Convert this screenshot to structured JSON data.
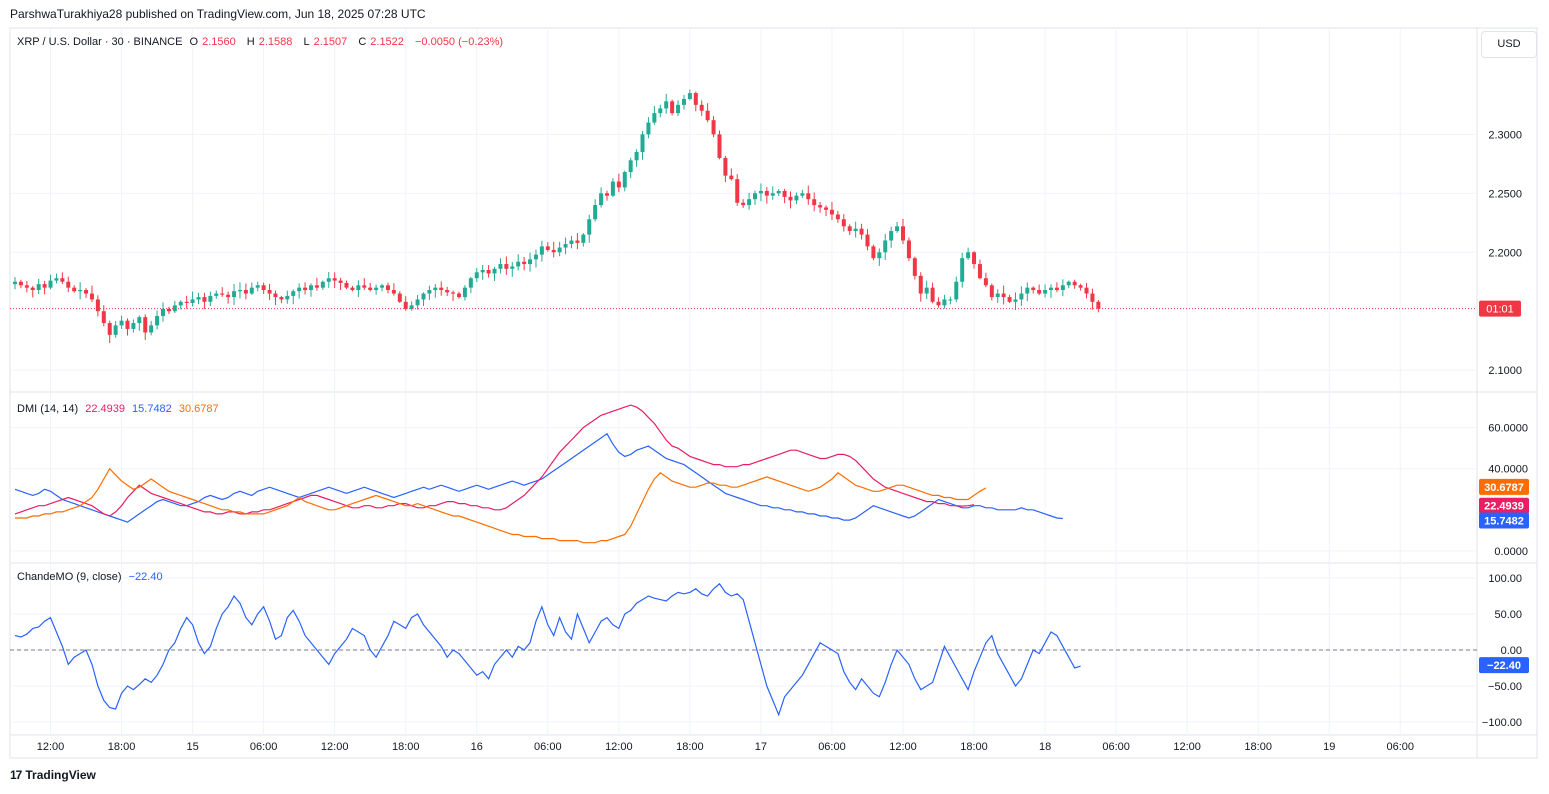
{
  "header": {
    "text": "ParshwaTurakhiya28 published on TradingView.com, Jun 18, 2025 07:28 UTC"
  },
  "footer": {
    "brand": "TradingView",
    "logo_glyph": "17"
  },
  "currency_button": "USD",
  "colors": {
    "up": "#22ab94",
    "down": "#f23645",
    "dmi_plus": "#2962ff",
    "dmi_minus": "#f7525f",
    "adx": "#ff6d00",
    "dmi_pink": "#e91e63",
    "cmo": "#2962ff",
    "text": "#131722",
    "grid": "#f0f3fa"
  },
  "price_legend": {
    "symbol": "XRP / U.S. Dollar · 30 · BINANCE",
    "o_label": "O",
    "o": "2.1560",
    "h_label": "H",
    "h": "2.1588",
    "l_label": "L",
    "l": "2.1507",
    "c_label": "C",
    "c": "2.1522",
    "change": "−0.0050 (−0.23%)"
  },
  "dmi_legend": {
    "name": "DMI (14, 14)",
    "v1": "22.4939",
    "v2": "15.7482",
    "v3": "30.6787"
  },
  "cmo_legend": {
    "name": "ChandeMO (9, close)",
    "v": "−22.40"
  },
  "chart_data": [
    {
      "type": "candlestick",
      "title": "XRP / U.S. Dollar · 30 · BINANCE",
      "y_ticks": [
        "2.3000",
        "2.2500",
        "2.2000",
        "2.1000"
      ],
      "y_tick_values": [
        2.3,
        2.25,
        2.2,
        2.1
      ],
      "ylim": [
        2.09,
        2.38
      ],
      "last_price": 2.1522,
      "countdown_label": "01:01",
      "x_ticks": [
        "12:00",
        "18:00",
        "15",
        "06:00",
        "12:00",
        "18:00",
        "16",
        "06:00",
        "12:00",
        "18:00",
        "17",
        "06:00",
        "12:00",
        "18:00",
        "18",
        "06:00",
        "12:00",
        "18:00",
        "19",
        "06:00"
      ],
      "x_tick_index": [
        6,
        18,
        30,
        42,
        54,
        66,
        78,
        90,
        102,
        114,
        126,
        138,
        150,
        162,
        174,
        186,
        198,
        210,
        222,
        234
      ],
      "closes": [
        2.175,
        2.172,
        2.17,
        2.168,
        2.173,
        2.17,
        2.176,
        2.178,
        2.175,
        2.17,
        2.167,
        2.168,
        2.165,
        2.16,
        2.15,
        2.14,
        2.13,
        2.138,
        2.142,
        2.135,
        2.14,
        2.145,
        2.132,
        2.138,
        2.146,
        2.152,
        2.15,
        2.155,
        2.158,
        2.157,
        2.16,
        2.162,
        2.158,
        2.163,
        2.165,
        2.164,
        2.162,
        2.167,
        2.168,
        2.165,
        2.17,
        2.172,
        2.168,
        2.165,
        2.162,
        2.16,
        2.163,
        2.167,
        2.17,
        2.168,
        2.172,
        2.17,
        2.175,
        2.178,
        2.176,
        2.174,
        2.17,
        2.168,
        2.172,
        2.17,
        2.168,
        2.17,
        2.172,
        2.168,
        2.165,
        2.158,
        2.152,
        2.155,
        2.16,
        2.165,
        2.168,
        2.17,
        2.168,
        2.166,
        2.165,
        2.162,
        2.17,
        2.178,
        2.183,
        2.185,
        2.182,
        2.186,
        2.19,
        2.186,
        2.188,
        2.192,
        2.19,
        2.194,
        2.198,
        2.205,
        2.202,
        2.2,
        2.204,
        2.207,
        2.21,
        2.208,
        2.215,
        2.228,
        2.24,
        2.25,
        2.248,
        2.26,
        2.255,
        2.268,
        2.278,
        2.285,
        2.3,
        2.31,
        2.318,
        2.322,
        2.328,
        2.318,
        2.325,
        2.33,
        2.335,
        2.325,
        2.32,
        2.312,
        2.3,
        2.28,
        2.265,
        2.262,
        2.242,
        2.24,
        2.245,
        2.25,
        2.252,
        2.248,
        2.25,
        2.252,
        2.247,
        2.244,
        2.248,
        2.25,
        2.245,
        2.24,
        2.238,
        2.236,
        2.232,
        2.228,
        2.222,
        2.218,
        2.22,
        2.215,
        2.205,
        2.195,
        2.2,
        2.21,
        2.218,
        2.222,
        2.21,
        2.195,
        2.18,
        2.165,
        2.17,
        2.158,
        2.155,
        2.16,
        2.16,
        2.175,
        2.195,
        2.2,
        2.19,
        2.178,
        2.172,
        2.162,
        2.165,
        2.162,
        2.158,
        2.16,
        2.165,
        2.17,
        2.168,
        2.165,
        2.168,
        2.17,
        2.168,
        2.172,
        2.175,
        2.172,
        2.17,
        2.165,
        2.158,
        2.1522
      ],
      "dmi_plus": [
        30,
        29,
        28,
        27,
        28,
        30,
        29,
        27,
        25,
        24,
        23,
        22,
        21,
        20,
        19,
        18,
        17,
        16,
        15,
        14,
        16,
        18,
        20,
        22,
        24,
        25,
        24,
        23,
        22,
        22,
        23,
        24,
        26,
        27,
        26,
        25,
        26,
        28,
        29,
        28,
        27,
        29,
        30,
        31,
        30,
        29,
        28,
        27,
        26,
        27,
        28,
        29,
        30,
        31,
        30,
        29,
        28,
        29,
        30,
        31,
        30,
        29,
        28,
        27,
        26,
        27,
        28,
        29,
        30,
        31,
        30,
        31,
        32,
        31,
        30,
        29,
        30,
        31,
        32,
        31,
        30,
        31,
        32,
        33,
        34,
        33,
        32,
        33,
        34,
        35,
        37,
        39,
        41,
        43,
        45,
        47,
        49,
        51,
        53,
        55,
        57,
        52,
        48,
        46,
        47,
        49,
        50,
        51,
        49,
        47,
        45,
        44,
        43,
        42,
        40,
        38,
        36,
        34,
        32,
        30,
        28,
        27,
        26,
        25,
        24,
        23,
        22,
        22,
        21,
        21,
        20,
        20,
        19,
        19,
        18,
        18,
        17,
        17,
        16,
        16,
        15,
        15,
        16,
        18,
        20,
        22,
        21,
        20,
        19,
        18,
        17,
        16,
        17,
        19,
        21,
        23,
        25,
        24,
        23,
        22,
        21,
        21,
        22,
        22,
        21,
        21,
        20,
        20,
        20,
        20,
        21,
        20,
        20,
        19,
        18,
        17,
        16,
        15.7482
      ],
      "dmi_minus": [
        18,
        19,
        20,
        21,
        22,
        22,
        23,
        24,
        25,
        26,
        25,
        24,
        23,
        22,
        20,
        18,
        17,
        19,
        22,
        26,
        29,
        32,
        30,
        28,
        27,
        26,
        25,
        24,
        23,
        22,
        21,
        20,
        19,
        19,
        18,
        18,
        19,
        19,
        18,
        18,
        19,
        19,
        20,
        20,
        21,
        22,
        23,
        24,
        25,
        26,
        27,
        27,
        26,
        25,
        24,
        23,
        22,
        21,
        21,
        22,
        22,
        21,
        21,
        22,
        22,
        23,
        23,
        22,
        21,
        21,
        22,
        22,
        23,
        24,
        24,
        23,
        23,
        22,
        22,
        21,
        21,
        20,
        20,
        21,
        23,
        25,
        27,
        30,
        33,
        36,
        40,
        44,
        48,
        51,
        54,
        57,
        60,
        62,
        64,
        66,
        67,
        68,
        69,
        70,
        71,
        70,
        68,
        65,
        62,
        58,
        54,
        51,
        50,
        48,
        46,
        45,
        44,
        43,
        42,
        42,
        41,
        41,
        41,
        42,
        42,
        43,
        44,
        45,
        46,
        47,
        48,
        49,
        49,
        48,
        47,
        46,
        45,
        45,
        46,
        47,
        47,
        46,
        44,
        41,
        38,
        35,
        33,
        31,
        30,
        29,
        28,
        27,
        26,
        25,
        24,
        24,
        23,
        23,
        22,
        22,
        21.8,
        22,
        22.4939
      ],
      "adx": [
        16,
        16,
        16,
        17,
        17,
        18,
        18,
        19,
        19,
        20,
        21,
        22,
        24,
        26,
        30,
        35,
        40,
        37,
        34,
        32,
        30,
        31,
        33,
        35,
        33,
        31,
        29,
        28,
        27,
        26,
        25,
        24,
        23,
        22,
        21,
        20,
        20,
        19,
        19,
        18,
        18,
        18,
        18,
        19,
        20,
        21,
        22,
        24,
        26,
        24,
        23,
        22,
        21,
        20,
        20,
        21,
        22,
        23,
        24,
        25,
        26,
        27,
        26,
        25,
        24,
        23,
        22,
        22,
        23,
        22,
        21,
        20,
        19,
        18,
        17,
        17,
        16,
        15,
        14,
        13,
        12,
        11,
        10,
        9,
        8,
        8,
        7,
        7,
        7,
        6,
        6,
        6,
        5,
        5,
        5,
        5,
        4,
        4,
        4,
        5,
        5,
        6,
        7,
        8,
        12,
        18,
        24,
        30,
        35,
        38,
        36,
        34,
        33,
        32,
        31,
        31,
        32,
        33,
        33,
        32,
        32,
        31,
        31,
        32,
        33,
        34,
        35,
        36,
        35,
        34,
        33,
        32,
        31,
        30,
        29,
        30,
        31,
        33,
        35,
        38,
        36,
        34,
        32,
        31,
        30,
        29,
        29,
        30,
        31,
        32,
        32,
        31,
        30,
        29,
        28,
        27,
        27,
        26,
        26,
        25,
        25,
        25,
        27,
        29,
        30.6787
      ],
      "dmi_y_ticks": [
        "60.0000",
        "40.0000",
        "0.0000"
      ],
      "dmi_y_tick_values": [
        60,
        40,
        0
      ],
      "dmi_ylim": [
        -2,
        72
      ],
      "cmo": [
        20,
        18,
        22,
        30,
        32,
        40,
        45,
        25,
        5,
        -20,
        -10,
        -5,
        0,
        -20,
        -50,
        -70,
        -80,
        -82,
        -60,
        -50,
        -55,
        -48,
        -40,
        -45,
        -35,
        -20,
        0,
        10,
        30,
        45,
        35,
        10,
        -5,
        5,
        30,
        50,
        60,
        75,
        65,
        45,
        35,
        50,
        60,
        40,
        15,
        20,
        45,
        55,
        40,
        20,
        10,
        0,
        -10,
        -20,
        -5,
        5,
        15,
        30,
        25,
        20,
        0,
        -10,
        5,
        20,
        40,
        35,
        30,
        45,
        50,
        35,
        25,
        15,
        5,
        -10,
        0,
        -5,
        -15,
        -25,
        -35,
        -30,
        -40,
        -20,
        -10,
        0,
        -10,
        5,
        0,
        10,
        40,
        60,
        35,
        20,
        45,
        25,
        15,
        50,
        30,
        10,
        25,
        40,
        45,
        35,
        30,
        50,
        55,
        65,
        70,
        75,
        72,
        70,
        68,
        75,
        80,
        78,
        80,
        85,
        78,
        75,
        85,
        92,
        80,
        75,
        78,
        70,
        40,
        10,
        -20,
        -50,
        -70,
        -90,
        -65,
        -55,
        -45,
        -35,
        -20,
        -5,
        10,
        5,
        0,
        -5,
        -30,
        -45,
        -55,
        -40,
        -50,
        -60,
        -65,
        -45,
        -20,
        0,
        -10,
        -20,
        -40,
        -55,
        -50,
        -45,
        -20,
        5,
        -10,
        -25,
        -40,
        -55,
        -30,
        -10,
        10,
        20,
        -5,
        -20,
        -35,
        -50,
        -40,
        -20,
        0,
        -5,
        10,
        25,
        20,
        5,
        -10,
        -25,
        -22.4
      ],
      "cmo_y_ticks": [
        "100.00",
        "50.00",
        "0.00",
        "−50.00",
        "−100.00"
      ],
      "cmo_y_tick_values": [
        100,
        50,
        0,
        -50,
        -100
      ],
      "cmo_ylim": [
        -100,
        100
      ]
    }
  ]
}
